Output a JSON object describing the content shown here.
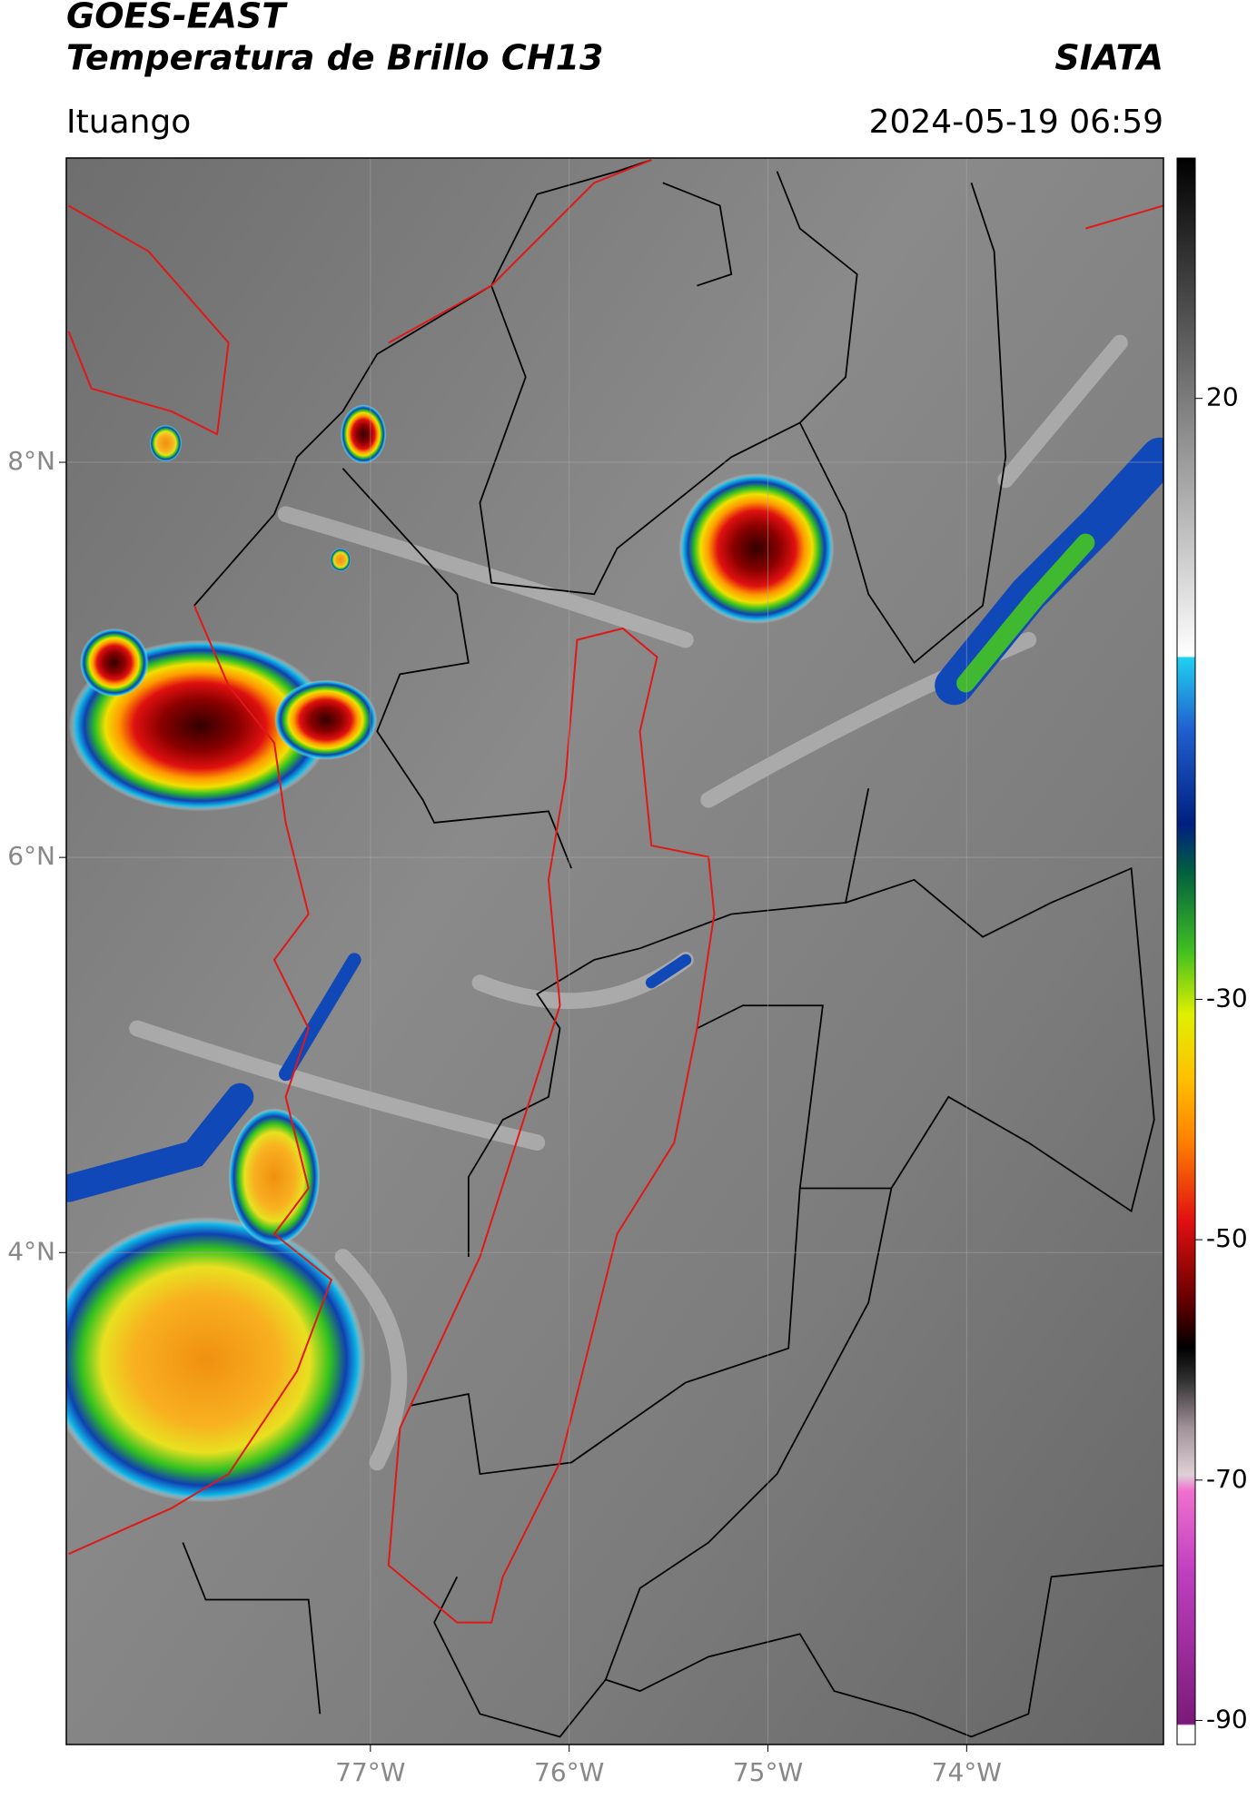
{
  "header": {
    "title": "GOES-EAST",
    "subtitle": "Temperatura de Brillo CH13",
    "source": "SIATA",
    "location": "Ituango",
    "timestamp": "2024-05-19 06:59"
  },
  "map": {
    "xlim": [
      -78.53,
      -73.01
    ],
    "ylim": [
      1.51,
      9.54
    ],
    "lon_ticks": [
      {
        "value": -77,
        "label": "77°W"
      },
      {
        "value": -76,
        "label": "76°W"
      },
      {
        "value": -75,
        "label": "75°W"
      },
      {
        "value": -74,
        "label": "74°W"
      }
    ],
    "lat_ticks": [
      {
        "value": 8,
        "label": "8°N"
      },
      {
        "value": 6,
        "label": "6°N"
      },
      {
        "value": 4,
        "label": "4°N"
      }
    ],
    "grid": true
  },
  "colorbar": {
    "range": [
      -92,
      40
    ],
    "ticks": [
      20,
      -30,
      -50,
      -70,
      -90
    ]
  }
}
